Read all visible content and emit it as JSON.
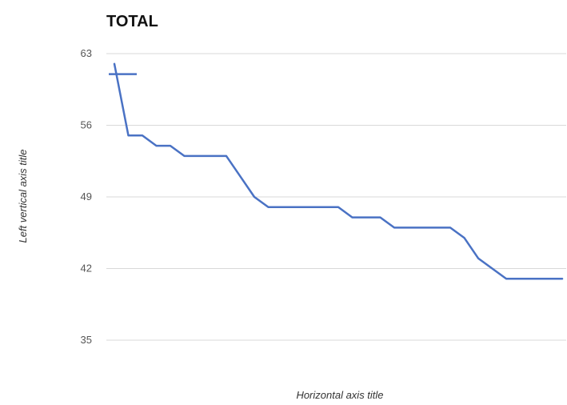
{
  "chart_data": {
    "type": "line",
    "title": "TOTAL",
    "xlabel": "Horizontal axis title",
    "ylabel": "Left vertical axis title",
    "ylim": [
      35,
      63
    ],
    "yticks": [
      "63",
      "56",
      "49",
      "42",
      "35"
    ],
    "grid": true,
    "legend": "none",
    "colors": {
      "series": "#4a72c4",
      "grid": "#d9d9d9"
    },
    "series": [
      {
        "x": [
          1,
          2,
          3,
          4,
          5,
          6,
          7,
          8,
          9,
          10,
          11,
          12,
          13,
          14,
          15,
          16,
          17,
          18,
          19,
          20,
          21,
          22,
          23,
          24,
          25,
          26,
          27,
          28,
          29,
          30,
          31,
          32,
          33
        ],
        "values": [
          62,
          55,
          55,
          54,
          54,
          53,
          53,
          53,
          53,
          51,
          49,
          48,
          48,
          48,
          48,
          48,
          48,
          47,
          47,
          47,
          46,
          46,
          46,
          46,
          46,
          45,
          43,
          42,
          41,
          41,
          41,
          41,
          41
        ]
      }
    ],
    "annotation": {
      "type": "horizontal-segment",
      "value": 61,
      "x_start": 0.6,
      "x_end": 2.6
    }
  }
}
